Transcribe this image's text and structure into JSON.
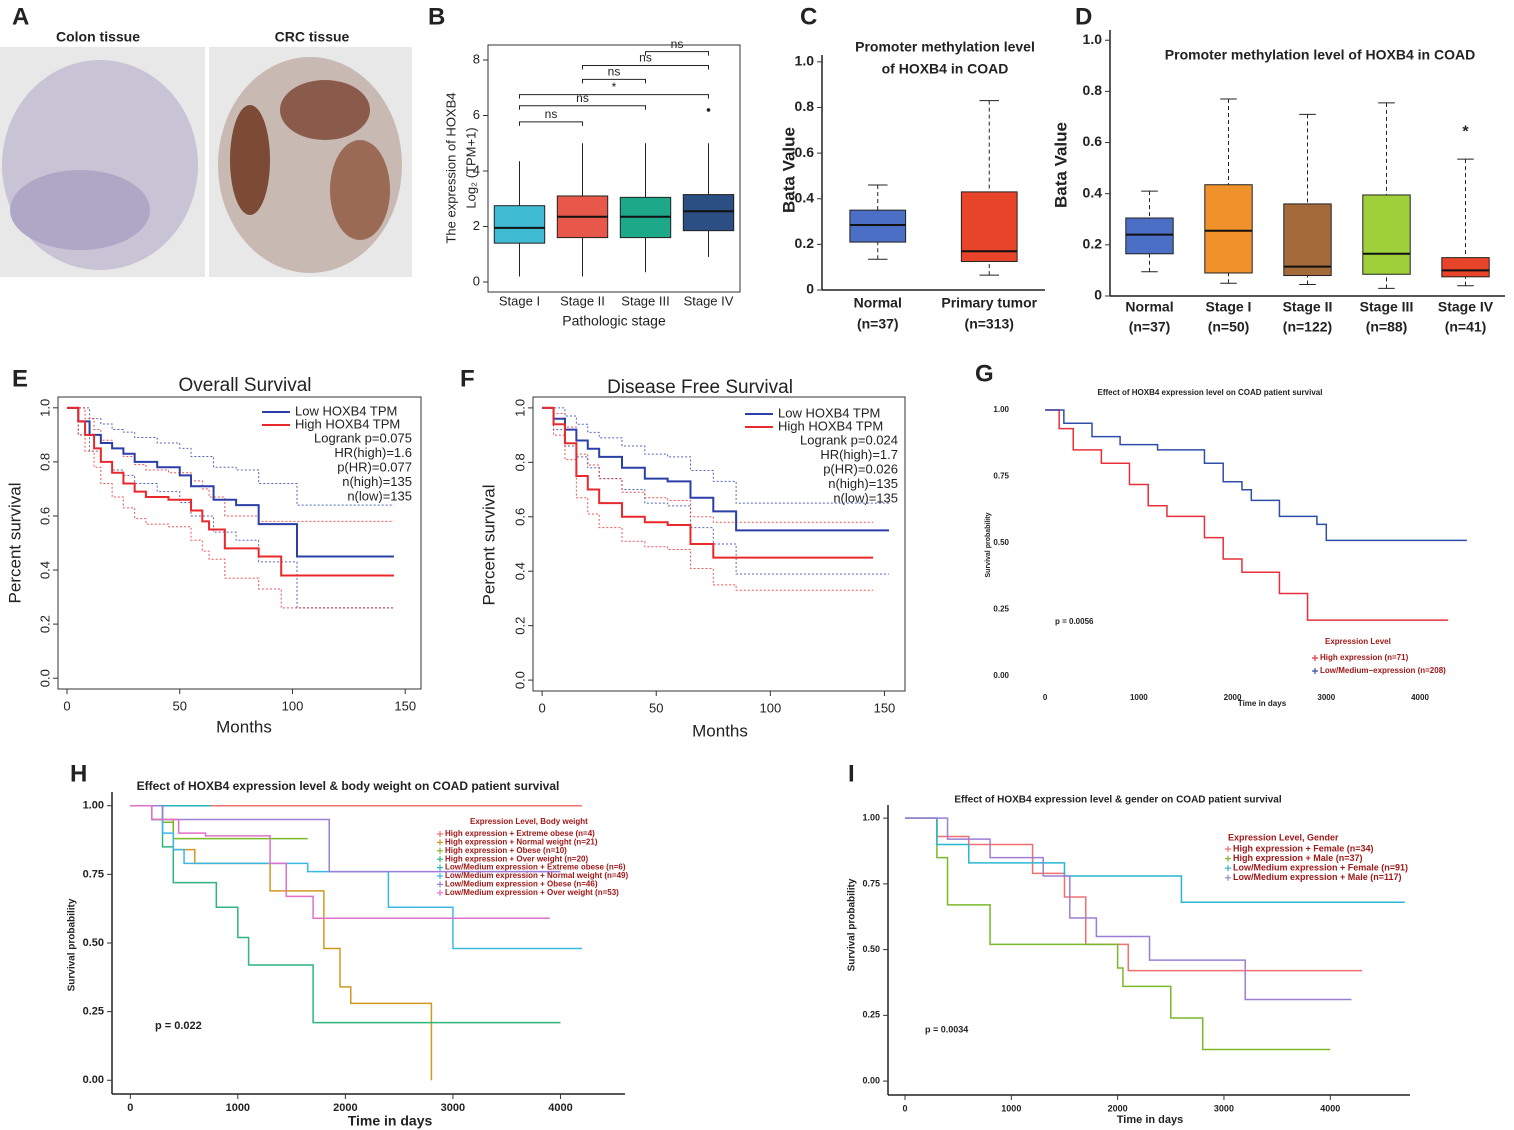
{
  "images": {
    "panel": "A",
    "labels": [
      "Colon tissue",
      "CRC tissue"
    ]
  },
  "chart_data": [
    {
      "type": "box",
      "panel": "B",
      "ylabel": [
        "The expression of HOXB4",
        "Log₂ (TPM+1)"
      ],
      "xlabel": "Pathologic stage",
      "categories": [
        "Stage I",
        "Stage II",
        "Stage III",
        "Stage IV"
      ],
      "colors": [
        "#3fbcd4",
        "#e8584a",
        "#1ea88a",
        "#2b4f82"
      ],
      "min": [
        0.2,
        0.2,
        0.35,
        0.9
      ],
      "q1": [
        1.4,
        1.6,
        1.6,
        1.85
      ],
      "median": [
        1.95,
        2.35,
        2.35,
        2.55
      ],
      "q3": [
        2.75,
        3.1,
        3.05,
        3.15
      ],
      "max": [
        4.35,
        5.0,
        5.0,
        5.0
      ],
      "outliers": [
        [],
        [],
        [],
        [
          6.2
        ]
      ],
      "comparisons": [
        {
          "pair": [
            0,
            1
          ],
          "label": "ns",
          "y": 5.77
        },
        {
          "pair": [
            0,
            2
          ],
          "label": "ns",
          "y": 6.35
        },
        {
          "pair": [
            0,
            3
          ],
          "label": "*",
          "y": 6.75
        },
        {
          "pair": [
            1,
            2
          ],
          "label": "ns",
          "y": 7.3
        },
        {
          "pair": [
            1,
            3
          ],
          "label": "ns",
          "y": 7.8
        },
        {
          "pair": [
            2,
            3
          ],
          "label": "ns",
          "y": 8.3
        }
      ],
      "ylim": [
        -0.36,
        8.54
      ],
      "yticks": [
        0,
        2,
        4,
        6,
        8
      ]
    },
    {
      "type": "box",
      "panel": "C",
      "title": [
        "Promoter methylation level",
        "of HOXB4 in COAD"
      ],
      "ylabel": [
        "Bata Value"
      ],
      "categories": [
        "Normal",
        "Primary tumor"
      ],
      "counts": [
        "(n=37)",
        "(n=313)"
      ],
      "colors": [
        "#4a6fc5",
        "#e8442a"
      ],
      "min": [
        0.135,
        0.065
      ],
      "q1": [
        0.21,
        0.125
      ],
      "median": [
        0.285,
        0.17
      ],
      "q3": [
        0.35,
        0.43
      ],
      "max": [
        0.46,
        0.83
      ],
      "ylim": [
        0,
        1.03
      ],
      "yticks": [
        0,
        0.2,
        0.4,
        0.6,
        0.8,
        {
          "value": 1,
          "label": "1.0"
        }
      ]
    },
    {
      "type": "box",
      "panel": "D",
      "title": [
        "Promoter methylation level of HOXB4 in COAD"
      ],
      "ylabel": [
        "Bata Value"
      ],
      "categories": [
        "Normal",
        "Stage I",
        "Stage II",
        "Stage III",
        "Stage IV"
      ],
      "counts": [
        "(n=37)",
        "(n=50)",
        "(n=122)",
        "(n=88)",
        "(n=41)"
      ],
      "colors": [
        "#4a6fc5",
        "#f0922b",
        "#a56a3a",
        "#9fd03a",
        "#e8442a"
      ],
      "min": [
        0.095,
        0.05,
        0.045,
        0.03,
        0.04
      ],
      "q1": [
        0.165,
        0.09,
        0.08,
        0.085,
        0.075
      ],
      "median": [
        0.24,
        0.255,
        0.115,
        0.165,
        0.1
      ],
      "q3": [
        0.305,
        0.435,
        0.36,
        0.395,
        0.15
      ],
      "max": [
        0.41,
        0.77,
        0.71,
        0.755,
        0.535
      ],
      "annotations": [
        {
          "index": 4,
          "label": "*",
          "y": 0.64
        }
      ],
      "ylim": [
        0,
        1.04
      ],
      "yticks": [
        0,
        0.2,
        0.4,
        0.6,
        0.8,
        {
          "value": 1,
          "label": "1.0"
        }
      ]
    },
    {
      "type": "step",
      "panel": "E",
      "title": "Overall Survival",
      "xlabel": "Months",
      "ylabel": "Percent survival",
      "series": [
        {
          "name": "Low HOXB4 TPM",
          "color": "#2a3fa8",
          "x": [
            0,
            5,
            10,
            15,
            20,
            25,
            30,
            40,
            50,
            55,
            65,
            75,
            85,
            102,
            145
          ],
          "values": [
            1.0,
            0.95,
            0.9,
            0.87,
            0.85,
            0.83,
            0.8,
            0.78,
            0.75,
            0.71,
            0.66,
            0.64,
            0.57,
            0.45,
            0.45
          ],
          "ci_upper": [
            1.0,
            1.0,
            0.96,
            0.94,
            0.92,
            0.91,
            0.89,
            0.87,
            0.85,
            0.82,
            0.78,
            0.77,
            0.72,
            0.64,
            0.64
          ],
          "ci_lower": [
            1.0,
            0.9,
            0.84,
            0.8,
            0.77,
            0.75,
            0.72,
            0.69,
            0.65,
            0.6,
            0.54,
            0.51,
            0.43,
            0.26,
            0.26
          ]
        },
        {
          "name": "High HOXB4 TPM",
          "color": "#e8282a",
          "x": [
            0,
            5,
            8,
            12,
            15,
            20,
            25,
            30,
            35,
            45,
            55,
            60,
            63,
            70,
            85,
            95,
            145
          ],
          "values": [
            1.0,
            0.95,
            0.9,
            0.85,
            0.8,
            0.76,
            0.72,
            0.69,
            0.67,
            0.66,
            0.62,
            0.58,
            0.55,
            0.48,
            0.45,
            0.38,
            0.38
          ],
          "ci_upper": [
            1.0,
            1.0,
            0.96,
            0.92,
            0.88,
            0.85,
            0.82,
            0.79,
            0.77,
            0.76,
            0.73,
            0.7,
            0.67,
            0.6,
            0.58,
            0.58,
            0.58
          ],
          "ci_lower": [
            1.0,
            0.9,
            0.84,
            0.78,
            0.72,
            0.67,
            0.63,
            0.59,
            0.57,
            0.56,
            0.51,
            0.47,
            0.44,
            0.37,
            0.33,
            0.26,
            0.26
          ]
        }
      ],
      "annotations": [
        "Logrank p=0.075",
        "HR(high)=1.6",
        "p(HR)=0.077",
        "n(high)=135",
        "n(low)=135"
      ],
      "xlim": [
        -4,
        157
      ],
      "xticks": [
        0,
        50,
        100,
        150
      ],
      "ylim": [
        -0.04,
        1.04
      ],
      "yticks": [
        {
          "value": 0,
          "label": "0.0"
        },
        0.2,
        0.4,
        0.6,
        0.8,
        {
          "value": 1,
          "label": "1.0"
        }
      ]
    },
    {
      "type": "step",
      "panel": "F",
      "title": "Disease Free Survival",
      "xlabel": "Months",
      "ylabel": "Percent survival",
      "series": [
        {
          "name": "Low HOXB4 TPM",
          "color": "#2a3fa8",
          "x": [
            0,
            5,
            10,
            15,
            20,
            25,
            35,
            45,
            55,
            65,
            75,
            85,
            152
          ],
          "values": [
            1.0,
            0.96,
            0.92,
            0.88,
            0.85,
            0.82,
            0.78,
            0.74,
            0.73,
            0.67,
            0.62,
            0.55,
            0.55
          ],
          "ci_upper": [
            1.0,
            1.0,
            0.97,
            0.94,
            0.91,
            0.89,
            0.86,
            0.83,
            0.82,
            0.77,
            0.73,
            0.65,
            0.65
          ],
          "ci_lower": [
            1.0,
            0.92,
            0.86,
            0.82,
            0.78,
            0.74,
            0.7,
            0.65,
            0.64,
            0.56,
            0.5,
            0.39,
            0.39
          ]
        },
        {
          "name": "High HOXB4 TPM",
          "color": "#e8282a",
          "x": [
            0,
            5,
            10,
            15,
            20,
            25,
            35,
            45,
            55,
            65,
            75,
            85,
            145
          ],
          "values": [
            1.0,
            0.94,
            0.87,
            0.75,
            0.7,
            0.65,
            0.6,
            0.58,
            0.57,
            0.5,
            0.45,
            0.45,
            0.45
          ],
          "ci_upper": [
            1.0,
            0.98,
            0.93,
            0.83,
            0.79,
            0.74,
            0.69,
            0.67,
            0.66,
            0.6,
            0.58,
            0.58,
            0.58
          ],
          "ci_lower": [
            1.0,
            0.9,
            0.81,
            0.67,
            0.61,
            0.56,
            0.51,
            0.49,
            0.48,
            0.41,
            0.35,
            0.33,
            0.33
          ]
        }
      ],
      "annotations": [
        "Logrank p=0.024",
        "HR(high)=1.7",
        "p(HR)=0.026",
        "n(high)=135",
        "n(low)=135"
      ],
      "xlim": [
        -4,
        159
      ],
      "xticks": [
        0,
        50,
        100,
        150
      ],
      "ylim": [
        -0.04,
        1.04
      ],
      "yticks": [
        {
          "value": 0,
          "label": "0.0"
        },
        0.2,
        0.4,
        0.6,
        0.8,
        {
          "value": 1,
          "label": "1.0"
        }
      ]
    },
    {
      "type": "step",
      "panel": "G",
      "title": "Effect of HOXB4 expression level on COAD patient survival",
      "xlabel": "Time in days",
      "ylabel": "Survival probability",
      "legend_title": "Expression Level",
      "series": [
        {
          "name": "High expression (n=71)",
          "color": "#e8303a",
          "x": [
            0,
            150,
            300,
            600,
            900,
            1100,
            1300,
            1700,
            1900,
            2100,
            2500,
            2800,
            4300
          ],
          "values": [
            1.0,
            0.93,
            0.85,
            0.8,
            0.72,
            0.64,
            0.6,
            0.52,
            0.44,
            0.39,
            0.31,
            0.21,
            0.21
          ]
        },
        {
          "name": "Low/Medium−expression (n=208)",
          "color": "#2e4fa8",
          "x": [
            0,
            200,
            500,
            800,
            1200,
            1700,
            1900,
            2100,
            2200,
            2500,
            2900,
            3000,
            4500
          ],
          "values": [
            1.0,
            0.95,
            0.9,
            0.87,
            0.85,
            0.8,
            0.73,
            0.7,
            0.66,
            0.6,
            0.57,
            0.51,
            0.51
          ]
        }
      ],
      "annotations": [
        "p = 0.0056"
      ],
      "xlim": [
        -300,
        4800
      ],
      "xticks": [
        0,
        1000,
        2000,
        3000,
        4000
      ],
      "ylim": [
        -0.03,
        1.03
      ],
      "yticks": [
        {
          "value": 0,
          "label": "0.00"
        },
        0.25,
        {
          "value": 0.5,
          "label": "0.50"
        },
        0.75,
        {
          "value": 1,
          "label": "1.00"
        }
      ]
    },
    {
      "type": "step",
      "panel": "H",
      "title": "Effect of HOXB4 expression level & body weight on COAD patient survival",
      "xlabel": "Time in days",
      "ylabel": "Survival probability",
      "legend_title": "Expression Level, Body weight",
      "series": [
        {
          "name": "High expression + Extreme obese (n=4)",
          "color": "#f07070",
          "x": [
            0,
            4200
          ],
          "values": [
            1.0,
            1.0
          ]
        },
        {
          "name": "High expression + Normal weight (n=21)",
          "color": "#d09a20",
          "x": [
            0,
            200,
            400,
            600,
            1300,
            1800,
            1950,
            2050,
            2800
          ],
          "values": [
            1.0,
            0.95,
            0.84,
            0.79,
            0.69,
            0.48,
            0.34,
            0.28,
            0.0
          ]
        },
        {
          "name": "High expression + Obese (n=10)",
          "color": "#7ab929",
          "x": [
            0,
            300,
            400,
            1650
          ],
          "values": [
            1.0,
            0.94,
            0.88,
            0.88
          ]
        },
        {
          "name": "High expression + Over weight (n=20)",
          "color": "#2fb47c",
          "x": [
            0,
            200,
            300,
            400,
            800,
            1000,
            1100,
            1700,
            4000
          ],
          "values": [
            1.0,
            0.95,
            0.85,
            0.72,
            0.63,
            0.52,
            0.42,
            0.21,
            0.21
          ]
        },
        {
          "name": "Low/Medium expression + Extreme obese (n=6)",
          "color": "#26b5b5",
          "x": [
            0,
            750
          ],
          "values": [
            1.0,
            1.0
          ]
        },
        {
          "name": "Low/Medium expression + Normal weight (n=49)",
          "color": "#3cb8e6",
          "x": [
            0,
            300,
            400,
            500,
            1650,
            2400,
            3000,
            4200
          ],
          "values": [
            1.0,
            0.9,
            0.84,
            0.79,
            0.76,
            0.63,
            0.48,
            0.48
          ]
        },
        {
          "name": "Low/Medium expression + Obese (n=46)",
          "color": "#9b7fd6",
          "x": [
            0,
            300,
            1850,
            4000
          ],
          "values": [
            1.0,
            0.95,
            0.76,
            0.76
          ]
        },
        {
          "name": "Low/Medium expression + Over weight (n=53)",
          "color": "#e070c8",
          "x": [
            0,
            200,
            450,
            700,
            1300,
            1450,
            1700,
            3900
          ],
          "values": [
            1.0,
            0.95,
            0.9,
            0.89,
            0.79,
            0.67,
            0.59,
            0.59
          ]
        }
      ],
      "annotations": [
        "p = 0.022"
      ],
      "xlim": [
        -170,
        4600
      ],
      "xticks": [
        0,
        1000,
        2000,
        3000,
        4000
      ],
      "ylim": [
        -0.05,
        1.05
      ],
      "yticks": [
        {
          "value": 0,
          "label": "0.00"
        },
        0.25,
        {
          "value": 0.5,
          "label": "0.50"
        },
        0.75,
        {
          "value": 1,
          "label": "1.00"
        }
      ]
    },
    {
      "type": "step",
      "panel": "I",
      "title": "Effect of HOXB4 expression level & gender on COAD patient survival",
      "xlabel": "Time in days",
      "ylabel": "Survival probability",
      "legend_title": "Expression Level, Gender",
      "series": [
        {
          "name": "High expression + Female (n=34)",
          "color": "#f07070",
          "x": [
            0,
            300,
            600,
            1200,
            1500,
            1700,
            2100,
            4300
          ],
          "values": [
            1.0,
            0.93,
            0.9,
            0.79,
            0.7,
            0.52,
            0.42,
            0.42
          ]
        },
        {
          "name": "High expression + Male (n=37)",
          "color": "#7ab929",
          "x": [
            0,
            300,
            400,
            800,
            2000,
            2050,
            2500,
            2800,
            4000
          ],
          "values": [
            1.0,
            0.85,
            0.67,
            0.52,
            0.43,
            0.36,
            0.24,
            0.12,
            0.12
          ]
        },
        {
          "name": "Low/Medium expression + Female (n=91)",
          "color": "#29b6d0",
          "x": [
            0,
            300,
            600,
            1500,
            2600,
            4700
          ],
          "values": [
            1.0,
            0.9,
            0.83,
            0.78,
            0.68,
            0.68
          ]
        },
        {
          "name": "Low/Medium expression + Male (n=117)",
          "color": "#9b7fd6",
          "x": [
            0,
            400,
            800,
            1300,
            1550,
            1800,
            2300,
            3200,
            4200
          ],
          "values": [
            1.0,
            0.92,
            0.85,
            0.78,
            0.62,
            0.55,
            0.46,
            0.31,
            0.31
          ]
        }
      ],
      "annotations": [
        "p = 0.0034"
      ],
      "xlim": [
        -160,
        4750
      ],
      "xticks": [
        0,
        1000,
        2000,
        3000,
        4000
      ],
      "ylim": [
        -0.053,
        1.05
      ],
      "yticks": [
        {
          "value": 0,
          "label": "0.00"
        },
        0.25,
        {
          "value": 0.5,
          "label": "0.50"
        },
        0.75,
        {
          "value": 1,
          "label": "1.00"
        }
      ]
    }
  ]
}
